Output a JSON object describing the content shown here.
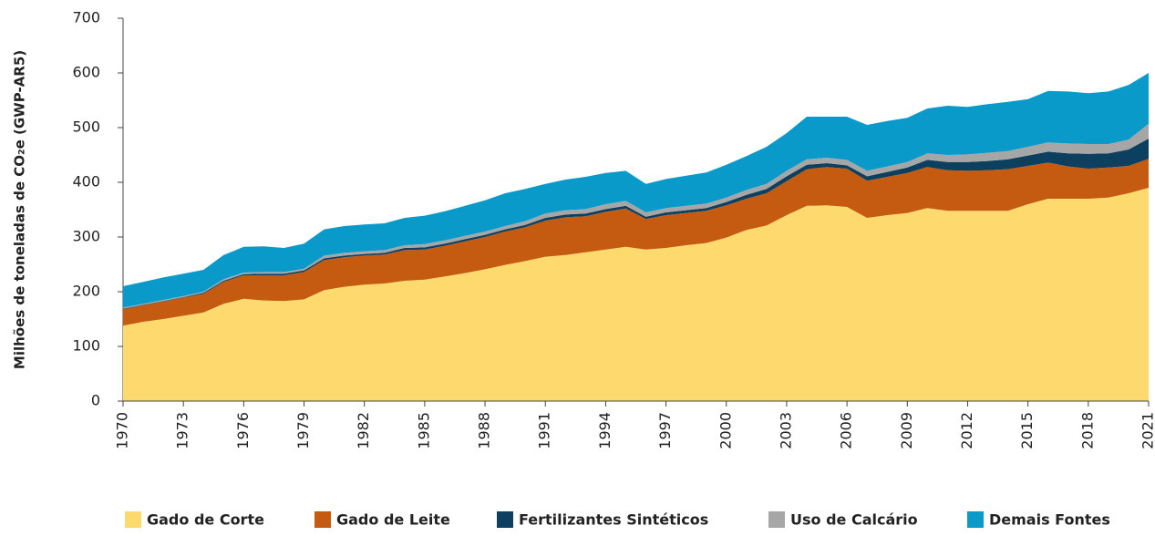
{
  "chart_data": {
    "type": "stacked-area",
    "y_label": "Milhões de toneladas de CO₂e (GWP-AR5)",
    "x": [
      1970,
      1971,
      1972,
      1973,
      1974,
      1975,
      1976,
      1977,
      1978,
      1979,
      1980,
      1981,
      1982,
      1983,
      1984,
      1985,
      1986,
      1987,
      1988,
      1989,
      1990,
      1991,
      1992,
      1993,
      1994,
      1995,
      1996,
      1997,
      1998,
      1999,
      2000,
      2001,
      2002,
      2003,
      2004,
      2005,
      2006,
      2007,
      2008,
      2009,
      2010,
      2011,
      2012,
      2013,
      2014,
      2015,
      2016,
      2017,
      2018,
      2019,
      2020,
      2021
    ],
    "xlim": [
      1970,
      2021
    ],
    "xticks": [
      1970,
      1973,
      1976,
      1979,
      1982,
      1985,
      1988,
      1991,
      1994,
      1997,
      2000,
      2003,
      2006,
      2009,
      2012,
      2015,
      2018,
      2021
    ],
    "ylim": [
      0,
      700
    ],
    "yticks": [
      0,
      100,
      200,
      300,
      400,
      500,
      600,
      700
    ],
    "series": [
      {
        "name": "Gado de Corte",
        "color": "#fdd96e",
        "values": [
          138,
          145,
          150,
          156,
          162,
          178,
          187,
          184,
          183,
          186,
          203,
          209,
          213,
          215,
          220,
          222,
          228,
          234,
          241,
          249,
          256,
          264,
          267,
          272,
          277,
          282,
          277,
          280,
          285,
          289,
          299,
          313,
          321,
          340,
          357,
          358,
          355,
          335,
          340,
          344,
          353,
          348,
          348,
          348,
          348,
          360,
          370,
          370,
          370,
          372,
          380,
          390
        ]
      },
      {
        "name": "Gado de Leite",
        "color": "#c55a11",
        "values": [
          30,
          30,
          32,
          33,
          34,
          40,
          43,
          46,
          47,
          50,
          55,
          54,
          53,
          53,
          56,
          55,
          56,
          58,
          59,
          61,
          62,
          66,
          69,
          66,
          69,
          70,
          56,
          60,
          59,
          59,
          59,
          57,
          59,
          62,
          67,
          70,
          70,
          68,
          70,
          73,
          75,
          74,
          73,
          74,
          76,
          70,
          66,
          59,
          55,
          55,
          50,
          53
        ]
      },
      {
        "name": "Fertilizantes Sintéticos",
        "color": "#0d3f5e",
        "values": [
          1,
          1,
          1,
          1,
          2,
          2,
          2,
          3,
          3,
          3,
          3,
          3,
          3,
          3,
          4,
          4,
          4,
          4,
          4,
          4,
          4,
          5,
          5,
          5,
          5,
          5,
          4,
          5,
          5,
          5,
          6,
          7,
          8,
          9,
          8,
          7,
          6,
          8,
          9,
          10,
          13,
          15,
          16,
          17,
          18,
          19,
          20,
          24,
          27,
          26,
          30,
          37
        ]
      },
      {
        "name": "Uso de Calcário",
        "color": "#a6a6a6",
        "values": [
          2,
          2,
          2,
          2,
          2,
          3,
          3,
          3,
          3,
          3,
          5,
          5,
          5,
          5,
          5,
          6,
          6,
          6,
          6,
          6,
          7,
          8,
          8,
          8,
          9,
          9,
          8,
          8,
          8,
          8,
          8,
          9,
          9,
          10,
          10,
          10,
          10,
          10,
          10,
          10,
          12,
          13,
          14,
          15,
          15,
          16,
          17,
          18,
          18,
          17,
          18,
          27
        ]
      },
      {
        "name": "Demais Fontes",
        "color": "#0a9ac9",
        "values": [
          39,
          40,
          41,
          41,
          40,
          44,
          47,
          47,
          44,
          46,
          48,
          49,
          49,
          49,
          50,
          52,
          53,
          55,
          57,
          60,
          59,
          54,
          56,
          59,
          57,
          55,
          52,
          53,
          55,
          57,
          60,
          62,
          68,
          69,
          78,
          75,
          79,
          84,
          83,
          81,
          82,
          90,
          87,
          89,
          90,
          87,
          94,
          95,
          93,
          96,
          100,
          93
        ]
      }
    ]
  }
}
